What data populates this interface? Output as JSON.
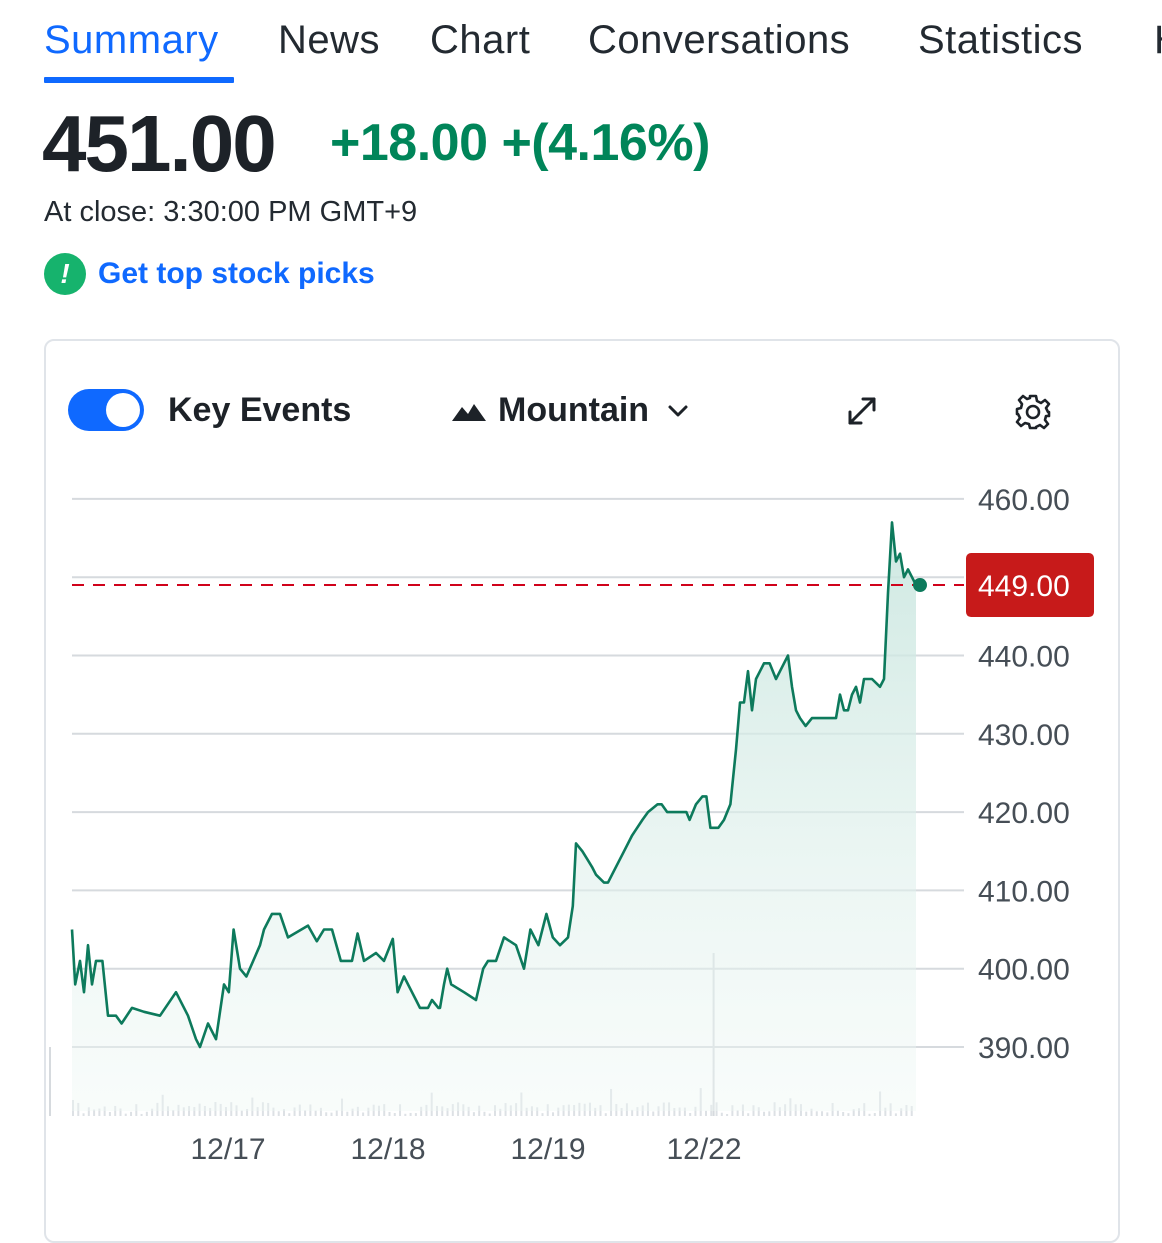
{
  "tabs": [
    {
      "label": "Summary",
      "active": true
    },
    {
      "label": "News",
      "active": false
    },
    {
      "label": "Chart",
      "active": false
    },
    {
      "label": "Conversations",
      "active": false
    },
    {
      "label": "Statistics",
      "active": false
    },
    {
      "label": "H",
      "active": false
    }
  ],
  "quote": {
    "price": "451.00",
    "change": "+18.00 +(4.16%)",
    "close_time": "At close: 3:30:00 PM GMT+9"
  },
  "picks": {
    "icon": "exclamation-badge-icon",
    "label": "Get top stock picks"
  },
  "chart_controls": {
    "key_events_label": "Key Events",
    "key_events_on": true,
    "chart_type_label": "Mountain",
    "expand_icon": "expand-arrows-icon",
    "settings_icon": "gear-icon"
  },
  "colors": {
    "accent": "#0f69ff",
    "positive": "#008559",
    "reference_line": "#d0021b",
    "badge_bg": "#c71a1a"
  },
  "chart_data": {
    "type": "area",
    "title": "",
    "xlabel": "",
    "ylabel": "",
    "ylim": [
      386,
      462
    ],
    "yticks": [
      "460.00",
      "440.00",
      "430.00",
      "420.00",
      "410.00",
      "400.00",
      "390.00"
    ],
    "ytick_values": [
      460,
      440,
      430,
      420,
      410,
      400,
      390
    ],
    "xticks": [
      {
        "label": "12/17",
        "x": 19.5
      },
      {
        "label": "12/18",
        "x": 39.5
      },
      {
        "label": "12/19",
        "x": 59.5
      },
      {
        "label": "12/22",
        "x": 79
      }
    ],
    "reference_line": {
      "value": 449,
      "label": "449.00"
    },
    "grid": true,
    "series": [
      {
        "points": [
          [
            0,
            405
          ],
          [
            0.4,
            398
          ],
          [
            1,
            401
          ],
          [
            1.5,
            397
          ],
          [
            2,
            403
          ],
          [
            2.5,
            398
          ],
          [
            3,
            401
          ],
          [
            3.8,
            401
          ],
          [
            4.5,
            394
          ],
          [
            5.5,
            394
          ],
          [
            6.2,
            393
          ],
          [
            7.5,
            395
          ],
          [
            9,
            394.5
          ],
          [
            11,
            394
          ],
          [
            13,
            397
          ],
          [
            14.5,
            394
          ],
          [
            15.5,
            391
          ],
          [
            16,
            390
          ],
          [
            17,
            393
          ],
          [
            18,
            391
          ],
          [
            19,
            398
          ],
          [
            19.6,
            397
          ],
          [
            20.2,
            405
          ],
          [
            21,
            400
          ],
          [
            21.8,
            399
          ],
          [
            23.5,
            403
          ],
          [
            24,
            405
          ],
          [
            25,
            407
          ],
          [
            26,
            407
          ],
          [
            27,
            404
          ],
          [
            29.5,
            405.5
          ],
          [
            30.6,
            403.5
          ],
          [
            31.5,
            405
          ],
          [
            32.5,
            405
          ],
          [
            33.6,
            401
          ],
          [
            35,
            401
          ],
          [
            35.7,
            404.5
          ],
          [
            36.5,
            401
          ],
          [
            38,
            402
          ],
          [
            39,
            401
          ],
          [
            40.1,
            403.8
          ],
          [
            40.7,
            397
          ],
          [
            41.5,
            399
          ],
          [
            42.5,
            397
          ],
          [
            43,
            396
          ],
          [
            43.5,
            395
          ],
          [
            44.5,
            395
          ],
          [
            45,
            396
          ],
          [
            45.8,
            395
          ],
          [
            46,
            395
          ],
          [
            46.5,
            398
          ],
          [
            46.9,
            400
          ],
          [
            47.4,
            398
          ],
          [
            49,
            397
          ],
          [
            50.5,
            396
          ],
          [
            51.4,
            400
          ],
          [
            52,
            401
          ],
          [
            53,
            401
          ],
          [
            54,
            404
          ],
          [
            55.5,
            403
          ],
          [
            56.5,
            400
          ],
          [
            57.3,
            405
          ],
          [
            58.3,
            403
          ],
          [
            59.3,
            407
          ],
          [
            60.1,
            404
          ],
          [
            61,
            403
          ],
          [
            62,
            404
          ],
          [
            62.6,
            408
          ],
          [
            63,
            416
          ],
          [
            63.8,
            415
          ],
          [
            64.4,
            414
          ],
          [
            65,
            413
          ],
          [
            65.5,
            412
          ],
          [
            66.5,
            411
          ],
          [
            67,
            411
          ],
          [
            67.5,
            412
          ],
          [
            69,
            415
          ],
          [
            70,
            417
          ],
          [
            71.3,
            419
          ],
          [
            72,
            420
          ],
          [
            73.2,
            421
          ],
          [
            73.7,
            421
          ],
          [
            74.4,
            420
          ],
          [
            75,
            420
          ],
          [
            76,
            420
          ],
          [
            76.8,
            420
          ],
          [
            77.2,
            419
          ],
          [
            78,
            421
          ],
          [
            78.8,
            422
          ],
          [
            79.3,
            422
          ],
          [
            79.8,
            418
          ],
          [
            80.8,
            418
          ],
          [
            81.5,
            419
          ],
          [
            82.3,
            421
          ],
          [
            83,
            428
          ],
          [
            83.5,
            434
          ],
          [
            84,
            434
          ],
          [
            84.5,
            438
          ],
          [
            85,
            433
          ],
          [
            85.5,
            437
          ],
          [
            86,
            438
          ],
          [
            86.5,
            439
          ],
          [
            87.2,
            439
          ],
          [
            88,
            437
          ],
          [
            88.5,
            438
          ],
          [
            89,
            439
          ],
          [
            89.5,
            440
          ],
          [
            90,
            436
          ],
          [
            90.5,
            433
          ],
          [
            91,
            432
          ],
          [
            91.7,
            431
          ],
          [
            92.5,
            432
          ],
          [
            93,
            432
          ],
          [
            94.5,
            432
          ],
          [
            95.5,
            432
          ],
          [
            96,
            435
          ],
          [
            96.5,
            433
          ],
          [
            97,
            433
          ],
          [
            97.5,
            435
          ],
          [
            98,
            436
          ],
          [
            98.5,
            434
          ],
          [
            99,
            437
          ],
          [
            100,
            437
          ],
          [
            101,
            436
          ],
          [
            101.5,
            437
          ],
          [
            102,
            448
          ],
          [
            102.5,
            457
          ],
          [
            103,
            452
          ],
          [
            103.5,
            453
          ],
          [
            104,
            450
          ],
          [
            104.5,
            451
          ],
          [
            105,
            450
          ],
          [
            105.5,
            449
          ]
        ]
      }
    ]
  }
}
